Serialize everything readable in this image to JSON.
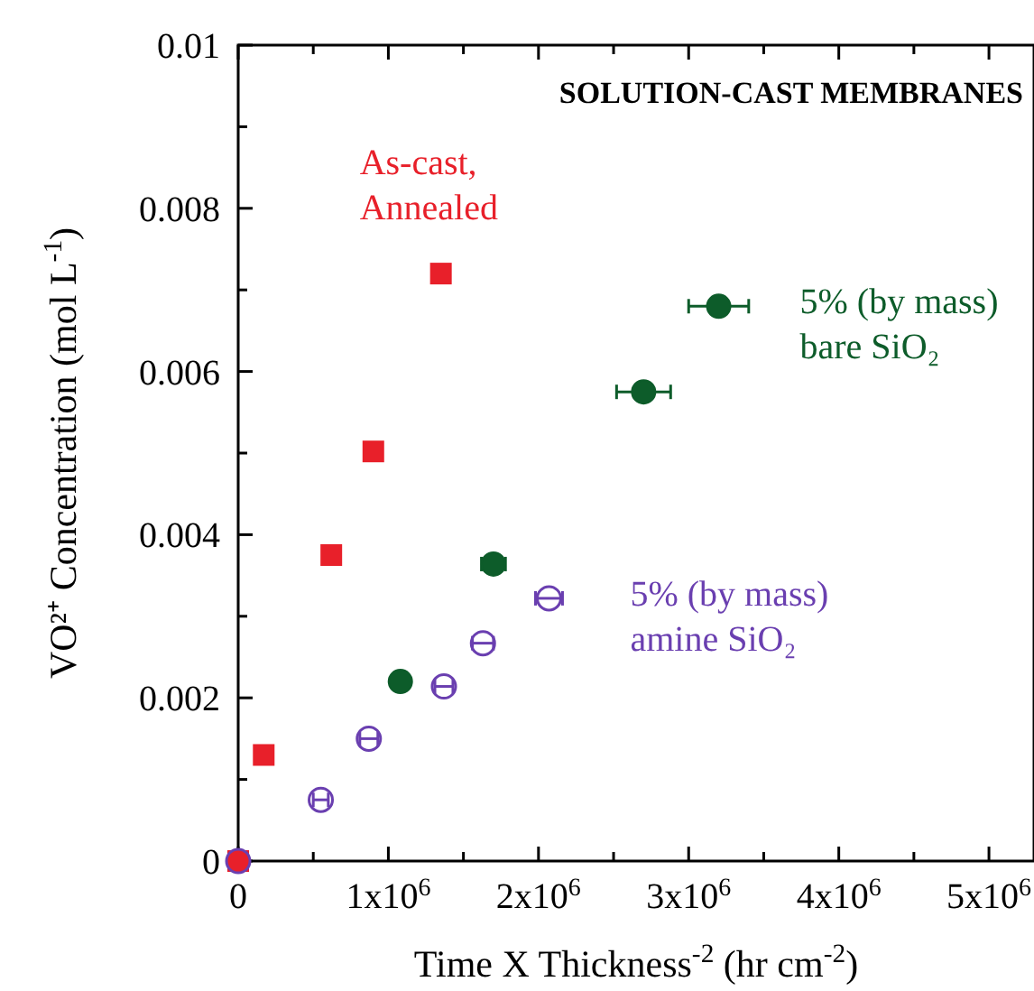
{
  "chart_data": {
    "type": "scatter",
    "title": "SOLUTION-CAST MEMBRANES",
    "xlabel": "Time X Thickness$^{-2}$ (hr cm$^{-2}$)",
    "ylabel": "VO²⁺ Concentration (mol L$^{-1}$)",
    "legend": false,
    "grid": false,
    "xlim": [
      0,
      5300000
    ],
    "xticks": [
      0,
      {
        "value": 500000,
        "label": null
      },
      {
        "value": 1000000,
        "label": "1x10$^{6}$"
      },
      {
        "value": 1500000,
        "label": null
      },
      {
        "value": 2000000,
        "label": "2x10$^{6}$"
      },
      {
        "value": 2500000,
        "label": null
      },
      {
        "value": 3000000,
        "label": "3x10$^{6}$"
      },
      {
        "value": 3500000,
        "label": null
      },
      {
        "value": 4000000,
        "label": "4x10$^{6}$"
      },
      {
        "value": 4500000,
        "label": null
      },
      {
        "value": 5000000,
        "label": "5x10$^{6}$"
      }
    ],
    "ylim": [
      0,
      0.01
    ],
    "yticks": [
      0,
      {
        "value": 0.001,
        "label": null
      },
      0.002,
      {
        "value": 0.003,
        "label": null
      },
      0.004,
      {
        "value": 0.005,
        "label": null
      },
      0.006,
      {
        "value": 0.007,
        "label": null
      },
      0.008,
      {
        "value": 0.009,
        "label": null
      },
      0.01
    ],
    "series": [
      {
        "name": "As-cast, Annealed",
        "color": "#e8202a",
        "marker": "square",
        "x": [
          0,
          170000,
          620000,
          900000,
          1350000
        ],
        "values": [
          0,
          0.0013,
          0.00375,
          0.00502,
          0.0072
        ]
      },
      {
        "name": "5% (by mass) bare SiO₂",
        "color": "#0d5c2a",
        "marker": "circle",
        "x": [
          1080000,
          1700000,
          2700000,
          3200000
        ],
        "values": [
          0.0022,
          0.00364,
          0.00575,
          0.0068
        ],
        "xerrors": [
          50000,
          80000,
          180000,
          200000
        ]
      },
      {
        "name": "5% (by mass) amine SiO₂",
        "color": "#6a3fb0",
        "marker": "circle",
        "x": [
          0,
          550000,
          870000,
          1370000,
          1630000,
          2070000
        ],
        "values": [
          0,
          0.00075,
          0.0015,
          0.00214,
          0.00267,
          0.00322
        ],
        "xerrors": [
          null,
          50000,
          60000,
          60000,
          70000,
          90000
        ]
      }
    ]
  }
}
